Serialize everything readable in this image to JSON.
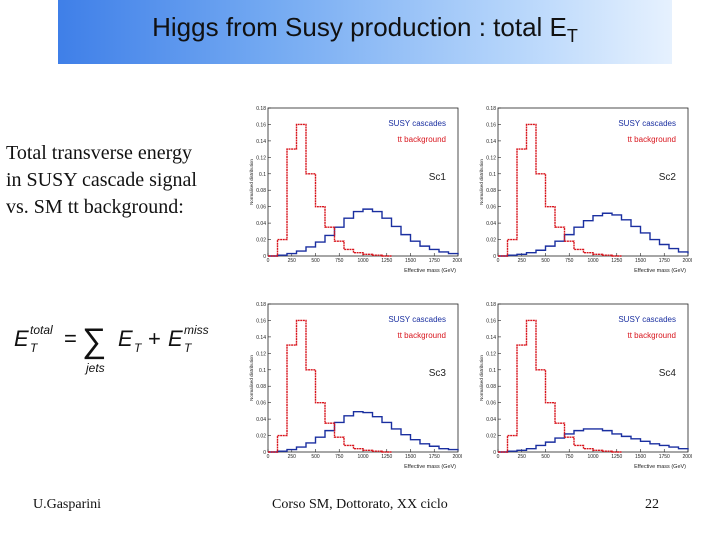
{
  "slide": {
    "title_main": "Higgs from Susy production : total E",
    "title_sub": "T",
    "body_lines": [
      "Total transverse energy",
      "in SUSY cascade signal",
      "vs. SM tt background:"
    ],
    "formula": {
      "lhs": "E",
      "lhs_sup": "total",
      "lhs_sub": "T",
      "sum_sym": "∑",
      "sum_under": "jets",
      "term1": "E",
      "term1_sub": "T",
      "plus": "+",
      "term2": "E",
      "term2_sup": "miss",
      "term2_sub": "T",
      "eq": "="
    },
    "footer": {
      "author": "U.Gasparini",
      "course": "Corso SM, Dottorato, XX ciclo",
      "page": "22"
    }
  },
  "colors": {
    "signal": "#1a2fa0",
    "background": "#d8141c",
    "title_gradient_start": "#3f7fe8",
    "title_gradient_end": "#e6f1fe"
  },
  "chart_data": [
    {
      "type": "line",
      "panel_label": "Sc1",
      "xlabel": "Effective mass (GeV)",
      "ylabel": "Normalised distribution",
      "xlim": [
        0,
        2000
      ],
      "ylim": [
        0,
        0.18
      ],
      "x_ticks": [
        "0",
        "250",
        "500",
        "750",
        "1000",
        "1250",
        "1500",
        "1750",
        "2000"
      ],
      "y_ticks": [
        "0",
        "0.02",
        "0.04",
        "0.06",
        "0.08",
        "0.1",
        "0.12",
        "0.14",
        "0.16",
        "0.18"
      ],
      "legend": [
        "SUSY cascades",
        "tt background"
      ],
      "series": [
        {
          "name": "SUSY cascades",
          "color": "#1a2fa0",
          "x": [
            0,
            100,
            200,
            300,
            400,
            500,
            600,
            700,
            800,
            900,
            1000,
            1100,
            1200,
            1300,
            1400,
            1500,
            1600,
            1700,
            1800,
            1900,
            2000
          ],
          "y": [
            0,
            0.001,
            0.003,
            0.006,
            0.011,
            0.017,
            0.025,
            0.035,
            0.046,
            0.054,
            0.057,
            0.054,
            0.046,
            0.036,
            0.026,
            0.018,
            0.012,
            0.008,
            0.005,
            0.003,
            0.002
          ]
        },
        {
          "name": "tt background",
          "color": "#d8141c",
          "x": [
            0,
            100,
            200,
            300,
            400,
            500,
            600,
            700,
            800,
            900,
            1000,
            1100,
            1200
          ],
          "y": [
            0,
            0.02,
            0.13,
            0.16,
            0.1,
            0.06,
            0.035,
            0.018,
            0.008,
            0.004,
            0.002,
            0.001,
            0
          ]
        }
      ]
    },
    {
      "type": "line",
      "panel_label": "Sc2",
      "xlabel": "Effective mass (GeV)",
      "ylabel": "Normalised distribution",
      "xlim": [
        0,
        2000
      ],
      "ylim": [
        0,
        0.18
      ],
      "x_ticks": [
        "0",
        "250",
        "500",
        "750",
        "1000",
        "1250",
        "1500",
        "1750",
        "2000"
      ],
      "y_ticks": [
        "0",
        "0.02",
        "0.04",
        "0.06",
        "0.08",
        "0.1",
        "0.12",
        "0.14",
        "0.16",
        "0.18"
      ],
      "legend": [
        "SUSY cascades",
        "tt background"
      ],
      "series": [
        {
          "name": "SUSY cascades",
          "color": "#1a2fa0",
          "x": [
            0,
            100,
            200,
            300,
            400,
            500,
            600,
            700,
            800,
            900,
            1000,
            1100,
            1200,
            1300,
            1400,
            1500,
            1600,
            1700,
            1800,
            1900,
            2000
          ],
          "y": [
            0,
            0.001,
            0.002,
            0.004,
            0.007,
            0.012,
            0.018,
            0.026,
            0.035,
            0.043,
            0.049,
            0.052,
            0.05,
            0.044,
            0.036,
            0.028,
            0.02,
            0.014,
            0.009,
            0.005,
            0.003
          ]
        },
        {
          "name": "tt background",
          "color": "#d8141c",
          "x": [
            0,
            100,
            200,
            300,
            400,
            500,
            600,
            700,
            800,
            900,
            1000,
            1100,
            1200
          ],
          "y": [
            0,
            0.02,
            0.13,
            0.16,
            0.1,
            0.06,
            0.035,
            0.018,
            0.008,
            0.004,
            0.002,
            0.001,
            0
          ]
        }
      ]
    },
    {
      "type": "line",
      "panel_label": "Sc3",
      "xlabel": "Effective mass (GeV)",
      "ylabel": "Normalised distribution",
      "xlim": [
        0,
        2000
      ],
      "ylim": [
        0,
        0.18
      ],
      "x_ticks": [
        "0",
        "250",
        "500",
        "750",
        "1000",
        "1250",
        "1500",
        "1750",
        "2000"
      ],
      "y_ticks": [
        "0",
        "0.02",
        "0.04",
        "0.06",
        "0.08",
        "0.1",
        "0.12",
        "0.14",
        "0.16",
        "0.18"
      ],
      "legend": [
        "SUSY cascades",
        "tt background"
      ],
      "series": [
        {
          "name": "SUSY cascades",
          "color": "#1a2fa0",
          "x": [
            0,
            100,
            200,
            300,
            400,
            500,
            600,
            700,
            800,
            900,
            1000,
            1100,
            1200,
            1300,
            1400,
            1500,
            1600,
            1700,
            1800,
            1900,
            2000
          ],
          "y": [
            0,
            0.001,
            0.003,
            0.006,
            0.011,
            0.018,
            0.026,
            0.036,
            0.044,
            0.049,
            0.048,
            0.043,
            0.036,
            0.028,
            0.021,
            0.015,
            0.01,
            0.007,
            0.004,
            0.003,
            0.002
          ]
        },
        {
          "name": "tt background",
          "color": "#d8141c",
          "x": [
            0,
            100,
            200,
            300,
            400,
            500,
            600,
            700,
            800,
            900,
            1000,
            1100,
            1200
          ],
          "y": [
            0,
            0.02,
            0.13,
            0.16,
            0.1,
            0.06,
            0.035,
            0.018,
            0.008,
            0.004,
            0.002,
            0.001,
            0
          ]
        }
      ]
    },
    {
      "type": "line",
      "panel_label": "Sc4",
      "xlabel": "Effective mass (GeV)",
      "ylabel": "Normalised distribution",
      "xlim": [
        0,
        2000
      ],
      "ylim": [
        0,
        0.18
      ],
      "x_ticks": [
        "0",
        "250",
        "500",
        "750",
        "1000",
        "1250",
        "1500",
        "1750",
        "2000"
      ],
      "y_ticks": [
        "0",
        "0.02",
        "0.04",
        "0.06",
        "0.08",
        "0.1",
        "0.12",
        "0.14",
        "0.16",
        "0.18"
      ],
      "legend": [
        "SUSY cascades",
        "tt background"
      ],
      "series": [
        {
          "name": "SUSY cascades",
          "color": "#1a2fa0",
          "x": [
            0,
            100,
            200,
            300,
            400,
            500,
            600,
            700,
            800,
            900,
            1000,
            1100,
            1200,
            1300,
            1400,
            1500,
            1600,
            1700,
            1800,
            1900,
            2000
          ],
          "y": [
            0,
            0.001,
            0.002,
            0.004,
            0.008,
            0.012,
            0.017,
            0.022,
            0.026,
            0.028,
            0.028,
            0.026,
            0.022,
            0.019,
            0.016,
            0.013,
            0.01,
            0.008,
            0.006,
            0.004,
            0.003
          ]
        },
        {
          "name": "tt background",
          "color": "#d8141c",
          "x": [
            0,
            100,
            200,
            300,
            400,
            500,
            600,
            700,
            800,
            900,
            1000,
            1100,
            1200
          ],
          "y": [
            0,
            0.02,
            0.13,
            0.16,
            0.1,
            0.06,
            0.035,
            0.018,
            0.008,
            0.004,
            0.002,
            0.001,
            0
          ]
        }
      ]
    }
  ]
}
